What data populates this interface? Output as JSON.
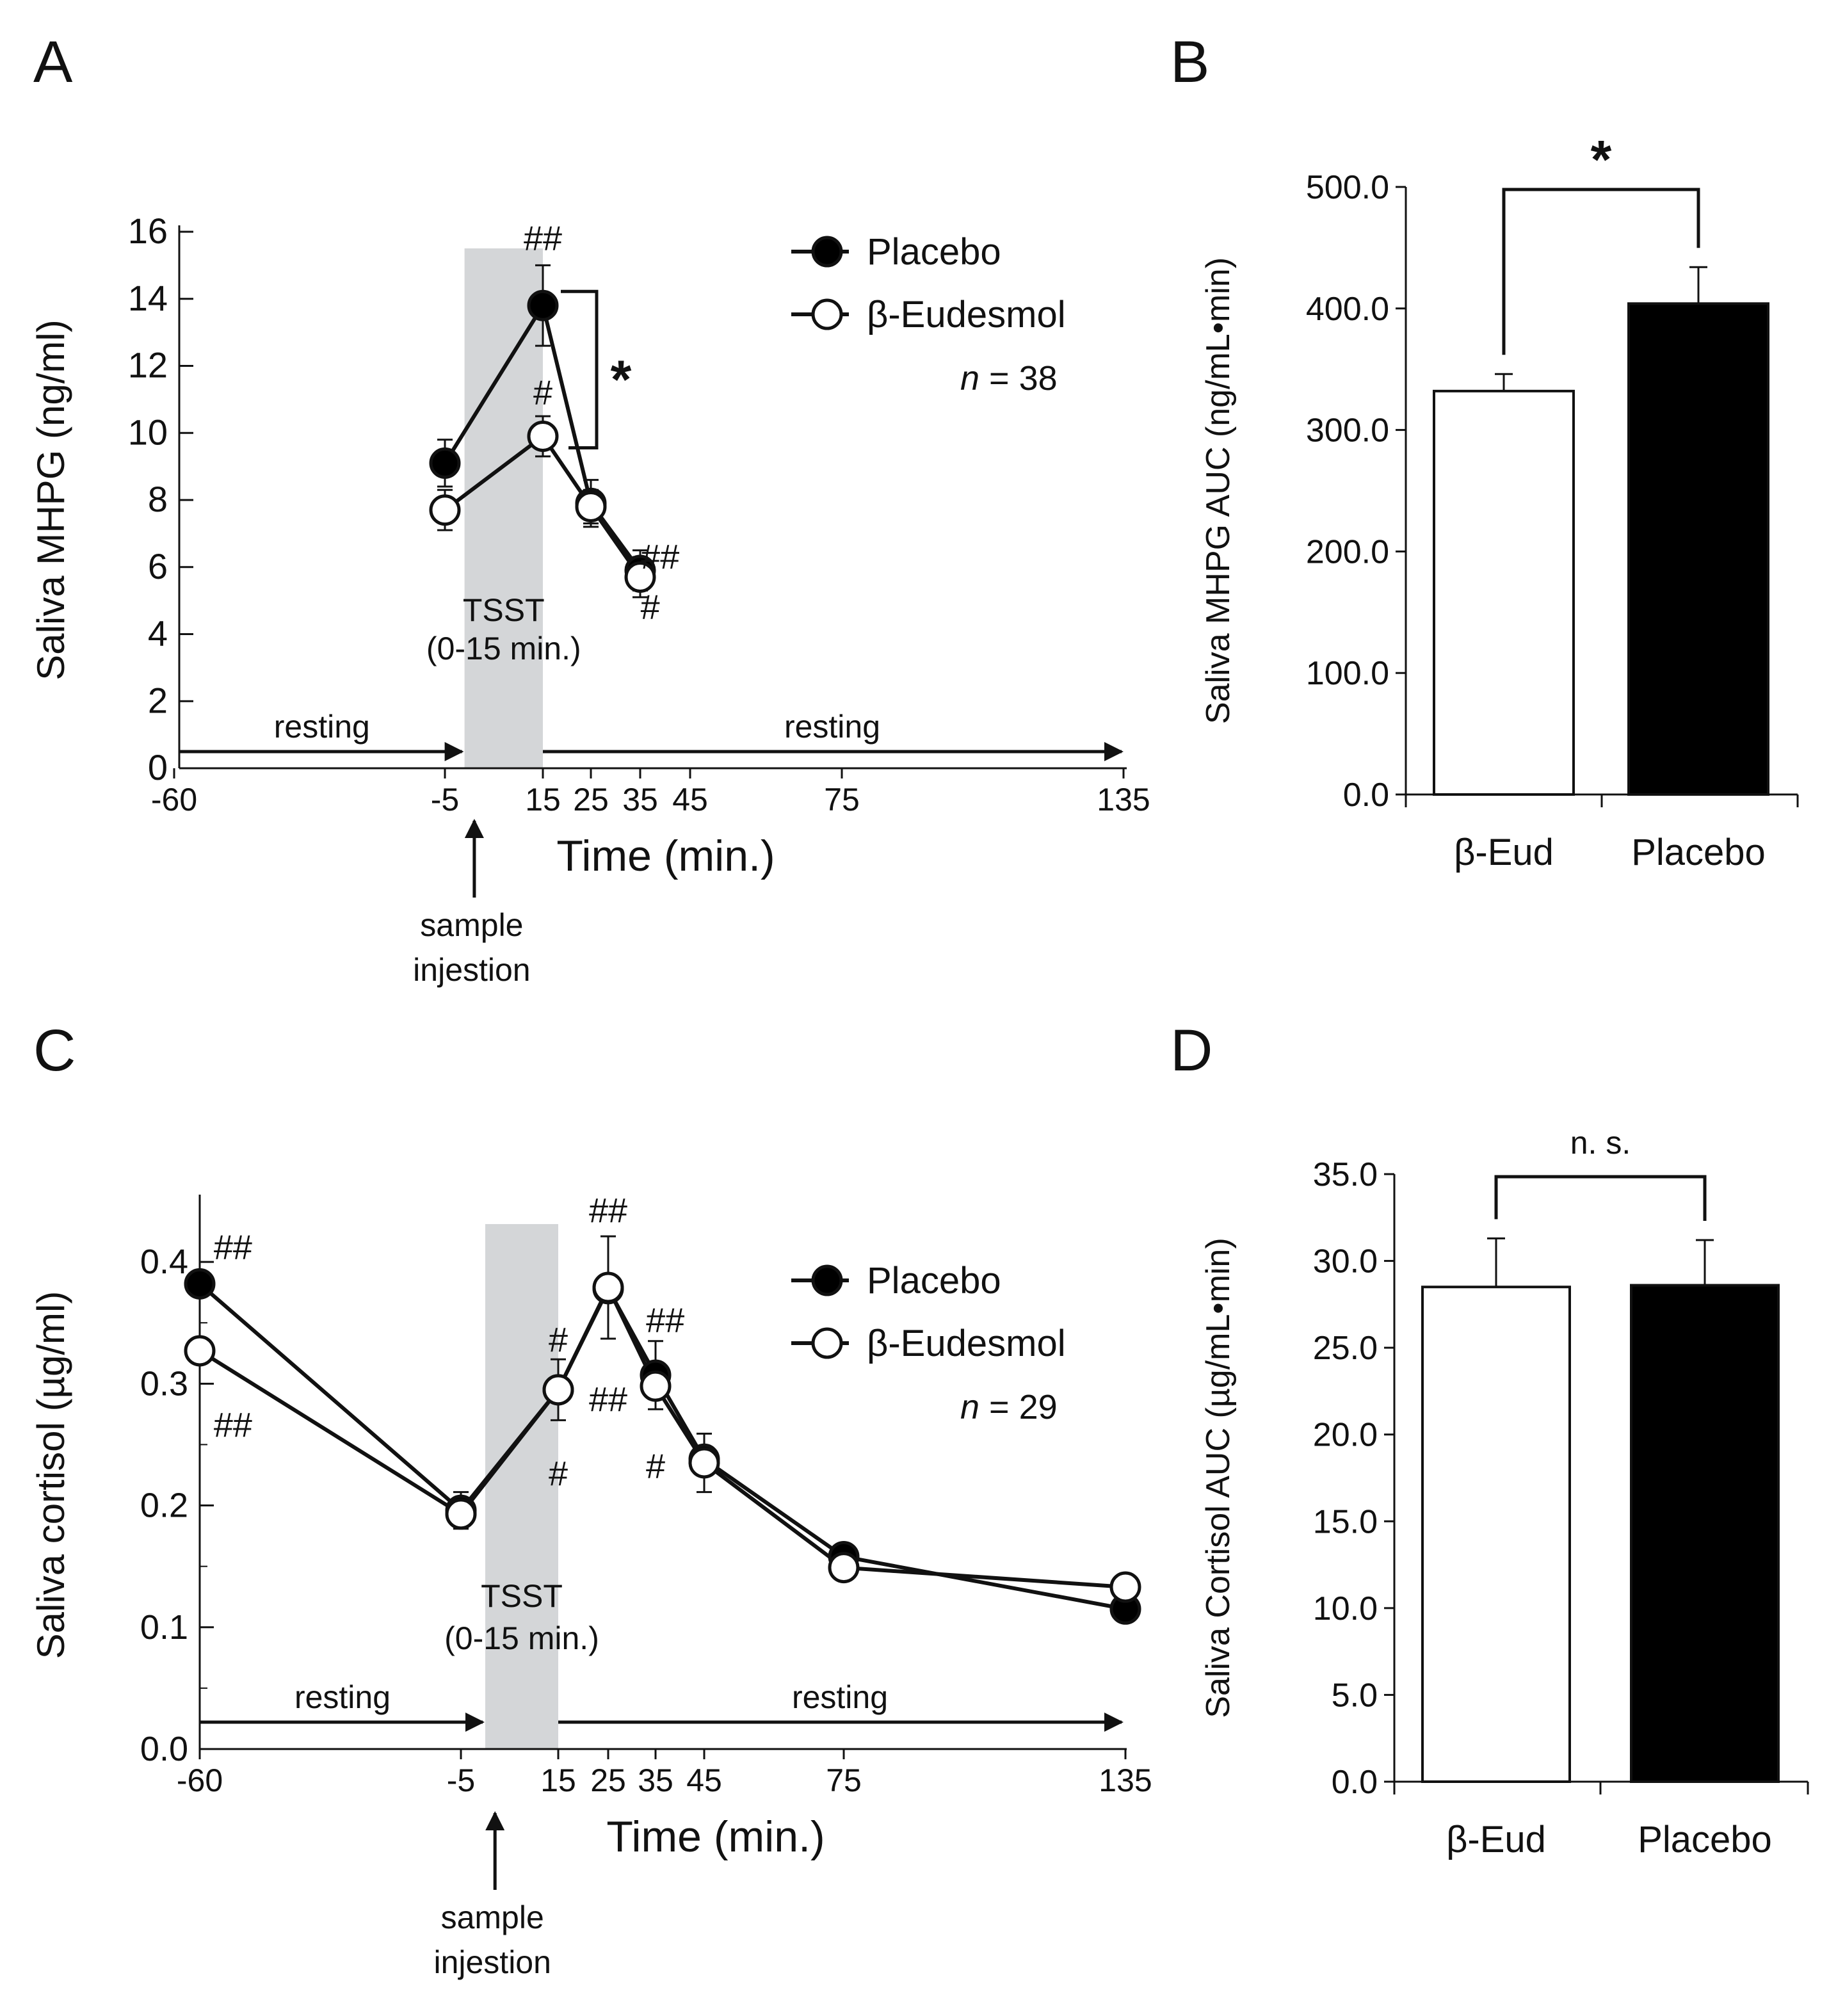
{
  "chart_data": [
    {
      "panel": "A",
      "type": "line",
      "ylabel": "Saliva MHPG (ng/ml)",
      "xlabel": "Time (min.)",
      "xlim": [
        -60,
        135
      ],
      "ylim": [
        0,
        16
      ],
      "xticks": [
        "-60",
        "-5",
        "15",
        "25",
        "35",
        "45",
        "75",
        "135"
      ],
      "xtick_values": [
        -60,
        -5,
        15,
        25,
        35,
        45,
        75,
        135
      ],
      "yticks": [
        "0",
        "2",
        "4",
        "6",
        "8",
        "10",
        "12",
        "14",
        "16"
      ],
      "ytick_values": [
        0,
        2,
        4,
        6,
        8,
        10,
        12,
        14,
        16
      ],
      "shade": {
        "x0": -1,
        "x1": 15,
        "label_1": "TSST",
        "label_2": "(0-15 min.)"
      },
      "resting_left": "resting",
      "resting_right": "resting",
      "arrow_label_1": "sample",
      "arrow_label_2": "injestion",
      "arrow_x": 1,
      "n_label": "n = 38",
      "n_letter": "n",
      "n_value": " = 38",
      "series": [
        {
          "name": "Placebo",
          "fill": "#000000",
          "x": [
            -5,
            15,
            25,
            35
          ],
          "y": [
            9.1,
            13.8,
            7.9,
            5.9
          ],
          "err": [
            0.7,
            1.2,
            0.7,
            0.6
          ]
        },
        {
          "name": "β-Eudesmol",
          "fill": "#ffffff",
          "x": [
            -5,
            15,
            25,
            35
          ],
          "y": [
            7.7,
            9.9,
            7.8,
            5.7
          ],
          "err": [
            0.6,
            0.6,
            0.5,
            0.6
          ]
        }
      ],
      "bracket": {
        "x": 15,
        "y_top": 13.8,
        "y_bottom": 9.9,
        "label": "*"
      },
      "annotations": [
        {
          "text": "##",
          "x": 15,
          "y": 15.8
        },
        {
          "text": "#",
          "x": 15,
          "y": 11.2
        },
        {
          "text": "##",
          "x": 39,
          "y": 6.3
        },
        {
          "text": "#",
          "x": 37,
          "y": 4.8
        }
      ]
    },
    {
      "panel": "B",
      "type": "bar",
      "ylabel": "Saliva MHPG AUC (ng/mL•min)",
      "categories": [
        "β-Eud",
        "Placebo"
      ],
      "values": [
        332.0,
        404.0
      ],
      "errors": [
        14.0,
        30.0
      ],
      "colors": [
        "#ffffff",
        "#000000"
      ],
      "ylim": [
        0,
        500
      ],
      "yticks": [
        "0.0",
        "100.0",
        "200.0",
        "300.0",
        "400.0",
        "500.0"
      ],
      "ytick_values": [
        0,
        100,
        200,
        300,
        400,
        500
      ],
      "bracket_label": "*"
    },
    {
      "panel": "C",
      "type": "line",
      "ylabel": "Saliva cortisol (µg/ml)",
      "xlabel": "Time (min.)",
      "xlim": [
        -60,
        135
      ],
      "ylim": [
        0,
        0.45
      ],
      "xticks": [
        "-60",
        "-5",
        "15",
        "25",
        "35",
        "45",
        "75",
        "135"
      ],
      "xtick_values": [
        -60,
        -5,
        15,
        25,
        35,
        45,
        75,
        135
      ],
      "yticks": [
        "0.0",
        "0.1",
        "0.2",
        "0.3",
        "0.4"
      ],
      "ytick_values": [
        0,
        0.1,
        0.2,
        0.3,
        0.4
      ],
      "shade": {
        "x0": 0,
        "x1": 15,
        "label_1": "TSST",
        "label_2": "(0-15 min.)"
      },
      "resting_left": "resting",
      "resting_right": "resting",
      "arrow_label_1": "sample",
      "arrow_label_2": "injestion",
      "arrow_x": 2,
      "n_label": "n = 29",
      "n_letter": "n",
      "n_value": " = 29",
      "series": [
        {
          "name": "Placebo",
          "fill": "#000000",
          "x": [
            -60,
            -5,
            15,
            25,
            35,
            45,
            75,
            135
          ],
          "y": [
            0.382,
            0.196,
            0.295,
            0.378,
            0.307,
            0.238,
            0.158,
            0.115
          ],
          "err": [
            0.0,
            0.015,
            0.025,
            0.0,
            0.028,
            0.0,
            0.0,
            0.0
          ]
        },
        {
          "name": "β-Eudesmol",
          "fill": "#ffffff",
          "x": [
            -60,
            -5,
            15,
            25,
            35,
            45,
            75,
            135
          ],
          "y": [
            0.327,
            0.193,
            0.295,
            0.379,
            0.298,
            0.235,
            0.149,
            0.133
          ],
          "err": [
            0.0,
            0.012,
            0.0,
            0.042,
            0.0,
            0.024,
            0.0,
            0.0
          ]
        }
      ],
      "annotations": [
        {
          "text": "##",
          "x": -53,
          "y": 0.412
        },
        {
          "text": "##",
          "x": -53,
          "y": 0.266
        },
        {
          "text": "#",
          "x": 15,
          "y": 0.336
        },
        {
          "text": "#",
          "x": 15,
          "y": 0.226
        },
        {
          "text": "##",
          "x": 25,
          "y": 0.442
        },
        {
          "text": "##",
          "x": 25,
          "y": 0.287
        },
        {
          "text": "##",
          "x": 37,
          "y": 0.352
        },
        {
          "text": "#",
          "x": 35,
          "y": 0.232
        }
      ]
    },
    {
      "panel": "D",
      "type": "bar",
      "ylabel": "Saliva Cortisol AUC (µg/mL•min)",
      "categories": [
        "β-Eud",
        "Placebo"
      ],
      "values": [
        28.5,
        28.6
      ],
      "errors": [
        2.8,
        2.6
      ],
      "colors": [
        "#ffffff",
        "#000000"
      ],
      "ylim": [
        0,
        35
      ],
      "yticks": [
        "0.0",
        "5.0",
        "10.0",
        "15.0",
        "20.0",
        "25.0",
        "30.0",
        "35.0"
      ],
      "ytick_values": [
        0,
        5,
        10,
        15,
        20,
        25,
        30,
        35
      ],
      "bracket_label": "n. s."
    }
  ]
}
